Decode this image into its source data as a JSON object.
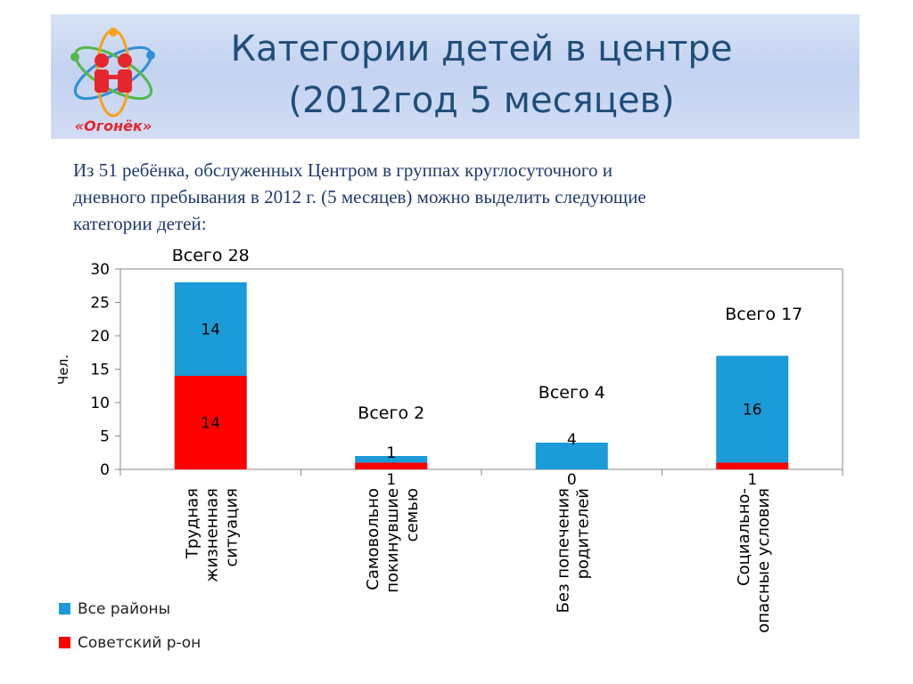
{
  "header": {
    "logo_caption": "«Огонёк»",
    "title_line1": "Категории детей в центре",
    "title_line2": "(2012год  5 месяцев)"
  },
  "intro": {
    "line1": "Из 51 ребёнка, обслуженных Центром в группах круглосуточного  и",
    "line2": "дневного пребывания в 2012 г. (5 месяцев) можно выделить следующие",
    "line3": "категории детей:"
  },
  "colors": {
    "all": "#1b9bd7",
    "sovetsky": "#ff0000",
    "title": "#1f4e79",
    "logo_red": "#e5262c"
  },
  "chart_data": {
    "type": "bar",
    "stacked": true,
    "ylabel": "Чел.",
    "ylim": [
      0,
      30
    ],
    "yticks": [
      0,
      5,
      10,
      15,
      20,
      25,
      30
    ],
    "categories": [
      [
        "Трудная",
        "жизненная",
        "ситуация"
      ],
      [
        "Самовольно",
        "покинувшие",
        "семью"
      ],
      [
        "Без попечения",
        "родителей"
      ],
      [
        "Социально-",
        "опасные условия"
      ]
    ],
    "series": [
      {
        "name": "Советский р-он",
        "values": [
          14,
          1,
          0,
          1
        ],
        "labels": [
          "14",
          "1",
          "0",
          "1"
        ]
      },
      {
        "name": "Все районы",
        "values": [
          14,
          1,
          4,
          16
        ],
        "labels": [
          "14",
          "1",
          "4",
          "16"
        ]
      }
    ],
    "totals": [
      "Всего 28",
      "Всего 2",
      "Всего 4",
      "Всего 17"
    ],
    "legend": {
      "position": "bottom-left",
      "entries": [
        "Все районы",
        "Советский р-он"
      ]
    }
  }
}
